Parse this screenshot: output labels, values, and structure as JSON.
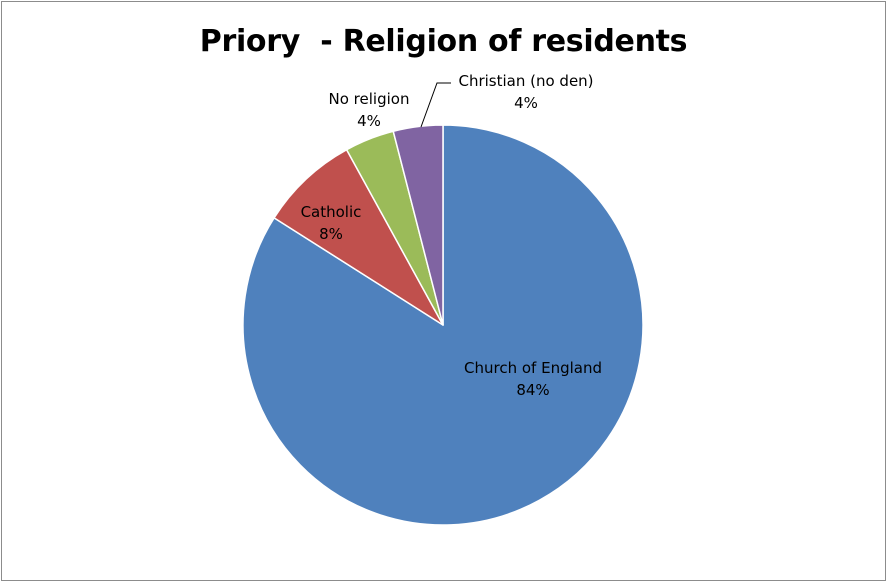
{
  "chart_data": {
    "type": "pie",
    "title": "Priory  - Religion of residents",
    "slices": [
      {
        "label": "Church of England",
        "percent_label": "84%",
        "value": 84,
        "color": "#4f81bd"
      },
      {
        "label": "Catholic",
        "percent_label": "8%",
        "value": 8,
        "color": "#c0504d"
      },
      {
        "label": "No religion",
        "percent_label": "4%",
        "value": 4,
        "color": "#9bbb59"
      },
      {
        "label": "Christian (no den)",
        "percent_label": "4%",
        "value": 4,
        "color": "#8064a2"
      }
    ],
    "legend": "none",
    "start_angle_deg": 0,
    "direction": "clockwise"
  }
}
